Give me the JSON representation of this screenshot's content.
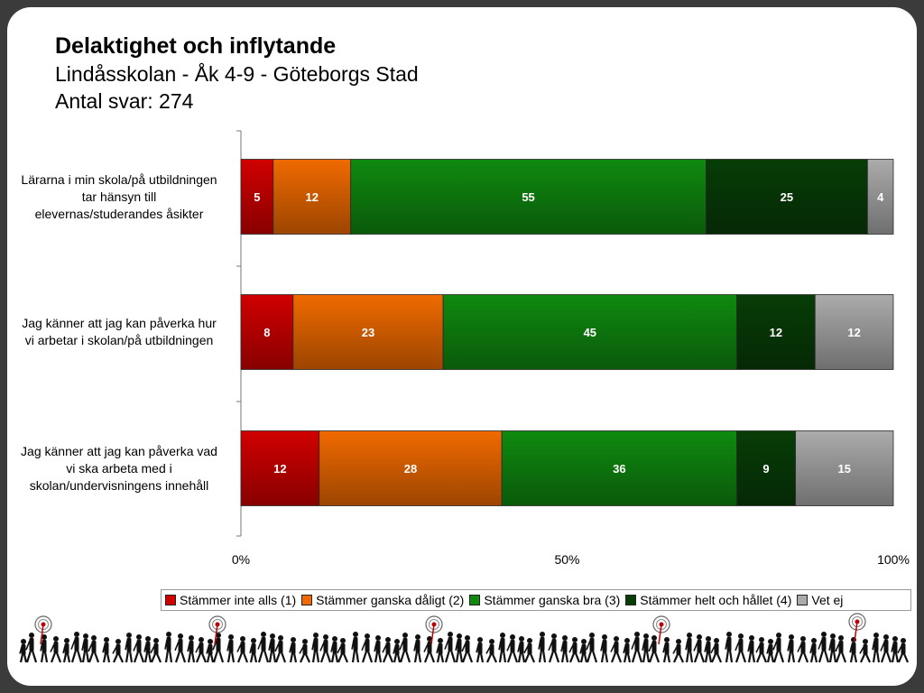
{
  "title": "Delaktighet och inflytande",
  "subtitle1": "Lindåsskolan - Åk 4-9 - Göteborgs Stad",
  "subtitle2": "Antal svar: 274",
  "chart_data": {
    "type": "bar",
    "orientation": "horizontal",
    "stacked": "percent",
    "categories": [
      "Lärarna i min skola/på utbildningen tar hänsyn till elevernas/studerandes åsikter",
      "Jag känner att jag kan påverka hur vi arbetar i skolan/på utbildningen",
      "Jag känner att jag kan påverka vad vi ska arbeta med i skolan/undervisningens innehåll"
    ],
    "category_lines": [
      [
        "Lärarna i min skola/på utbildningen",
        "tar hänsyn till",
        "elevernas/studerandes åsikter"
      ],
      [
        "Jag känner att jag kan påverka hur",
        "vi arbetar i skolan/på utbildningen"
      ],
      [
        "Jag känner att jag kan påverka vad",
        "vi ska arbeta med i",
        "skolan/undervisningens innehåll"
      ]
    ],
    "series": [
      {
        "name": "Stämmer inte alls (1)",
        "color": "#d10000",
        "values": [
          5,
          8,
          12
        ]
      },
      {
        "name": "Stämmer ganska dåligt (2)",
        "color": "#f06a00",
        "values": [
          12,
          23,
          28
        ]
      },
      {
        "name": "Stämmer ganska bra (3)",
        "color": "#0f8a0f",
        "values": [
          55,
          45,
          36
        ]
      },
      {
        "name": "Stämmer helt och hållet (4)",
        "color": "#073d07",
        "values": [
          25,
          12,
          9
        ]
      },
      {
        "name": "Vet ej",
        "color": "#ababab",
        "values": [
          4,
          12,
          15
        ]
      }
    ],
    "xlim": [
      0,
      100
    ],
    "xticks": [
      "0%",
      "50%",
      "100%"
    ],
    "legend": "bottom"
  },
  "icons": [
    "walking-crowd-silhouette",
    "target-icon"
  ]
}
